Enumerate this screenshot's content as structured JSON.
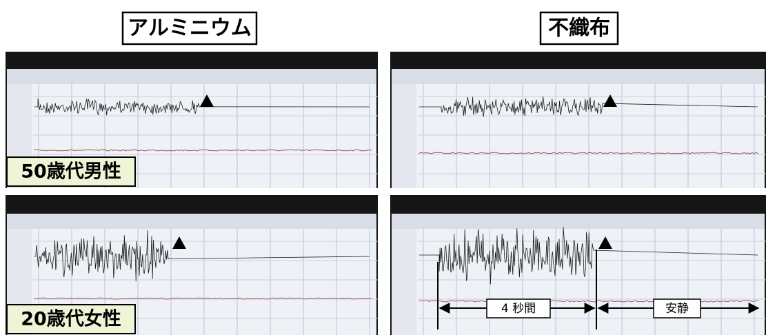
{
  "headers": {
    "left": "アルミニウム",
    "right": "不織布"
  },
  "panels": {
    "top_left_label": "50歳代男性",
    "bottom_left_label": "20歳代女性"
  },
  "annotations": {
    "duration": "4 秒間",
    "rest": "安静"
  }
}
